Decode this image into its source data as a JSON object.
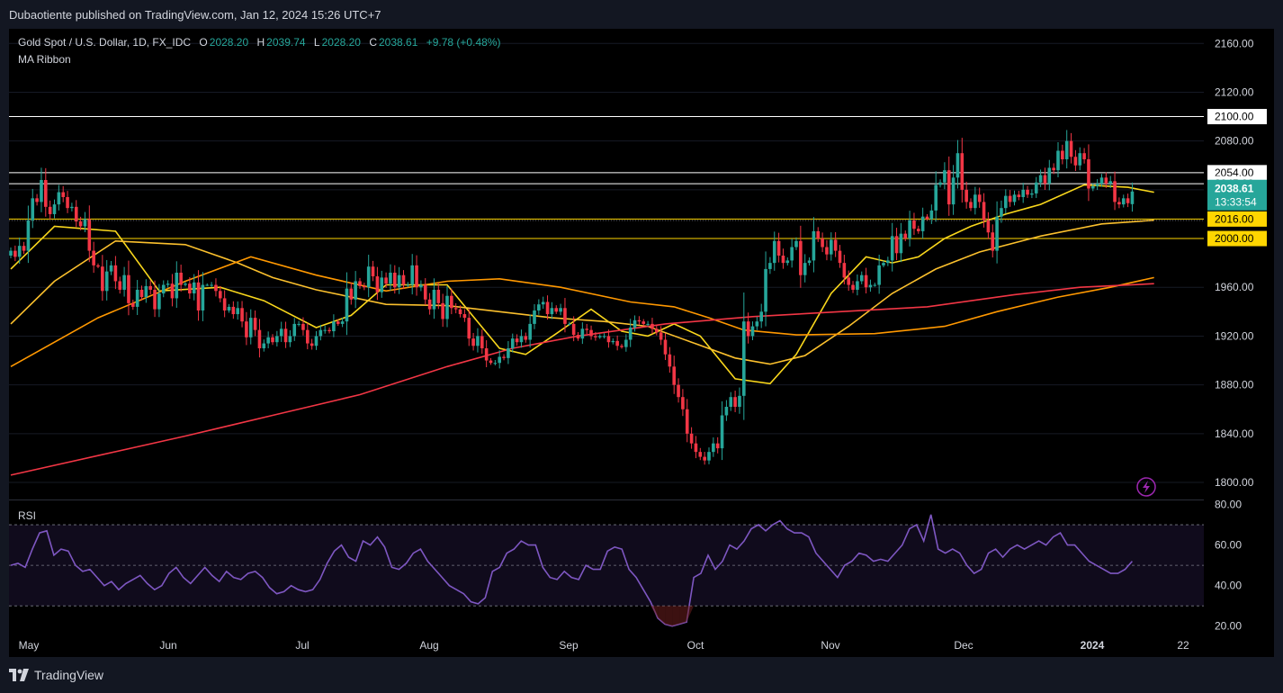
{
  "publisher": "Dubaotiente published on TradingView.com, Jan 12, 2024 15:26 UTC+7",
  "symbol": "Gold Spot / U.S. Dollar, 1D, FX_IDC",
  "ohlc": {
    "o_label": "O",
    "o": "2028.20",
    "h_label": "H",
    "h": "2039.74",
    "l_label": "L",
    "l": "2028.20",
    "c_label": "C",
    "c": "2038.61",
    "change": "+9.78 (+0.48%)"
  },
  "indicator": "MA Ribbon",
  "rsi_label": "RSI",
  "price_tag": {
    "price": "2038.61",
    "countdown": "13:33:54"
  },
  "footer_brand": "TradingView",
  "chart_data": [
    {
      "type": "candlestick",
      "x_ticks": [
        "May",
        "Jun",
        "Jul",
        "Aug",
        "Sep",
        "Oct",
        "Nov",
        "Dec",
        "2024",
        "22"
      ],
      "y_ticks": [
        "1800.00",
        "1840.00",
        "1880.00",
        "1920.00",
        "1960.00",
        "2000.00",
        "2040.00",
        "2080.00",
        "2120.00",
        "2160.00"
      ],
      "ylim": [
        1786,
        2172
      ],
      "levels": [
        {
          "value": 2100,
          "label": "2100.00",
          "color": "#ffffff"
        },
        {
          "value": 2054,
          "label": "2054.00",
          "color": "#ffffff"
        },
        {
          "value": 2045,
          "label": "2045.00",
          "color": "#ffffff"
        },
        {
          "value": 2016,
          "label": "2016.00",
          "color": "#ffd600"
        },
        {
          "value": 2000,
          "label": "2000.00",
          "color": "#ffd600"
        }
      ],
      "closes": [
        1990,
        1985,
        1994,
        1990,
        2015,
        2033,
        2030,
        2048,
        2026,
        2020,
        2028,
        2038,
        2034,
        2025,
        2026,
        2014,
        2010,
        2016,
        1990,
        1978,
        1977,
        1957,
        1973,
        1978,
        1965,
        1958,
        1970,
        1947,
        1944,
        1958,
        1952,
        1961,
        1958,
        1942,
        1955,
        1962,
        1963,
        1951,
        1972,
        1962,
        1963,
        1955,
        1964,
        1941,
        1962,
        1962,
        1962,
        1957,
        1951,
        1941,
        1944,
        1938,
        1943,
        1932,
        1919,
        1935,
        1925,
        1910,
        1914,
        1919,
        1915,
        1920,
        1926,
        1915,
        1920,
        1930,
        1930,
        1925,
        1914,
        1912,
        1920,
        1925,
        1925,
        1924,
        1932,
        1930,
        1932,
        1959,
        1950,
        1965,
        1961,
        1960,
        1977,
        1969,
        1956,
        1968,
        1963,
        1972,
        1960,
        1970,
        1962,
        1962,
        1978,
        1960,
        1962,
        1950,
        1942,
        1958,
        1947,
        1934,
        1953,
        1943,
        1942,
        1938,
        1935,
        1918,
        1912,
        1920,
        1910,
        1900,
        1898,
        1898,
        1903,
        1902,
        1910,
        1918,
        1915,
        1920,
        1917,
        1930,
        1941,
        1946,
        1948,
        1938,
        1943,
        1940,
        1943,
        1930,
        1930,
        1921,
        1918,
        1926,
        1925,
        1920,
        1919,
        1920,
        1920,
        1915,
        1916,
        1912,
        1911,
        1917,
        1927,
        1933,
        1932,
        1930,
        1930,
        1926,
        1923,
        1917,
        1905,
        1895,
        1880,
        1870,
        1860,
        1840,
        1832,
        1825,
        1821,
        1818,
        1825,
        1832,
        1828,
        1855,
        1862,
        1870,
        1862,
        1871,
        1932,
        1920,
        1928,
        1932,
        1940,
        1975,
        1980,
        1998,
        1986,
        1980,
        1982,
        1993,
        1998,
        1970,
        1980,
        1982,
        2006,
        2000,
        1993,
        1987,
        1999,
        1990,
        1980,
        1968,
        1962,
        1958,
        1965,
        1970,
        1960,
        1962,
        1962,
        1978,
        1980,
        1982,
        2002,
        1988,
        2004,
        2000,
        2015,
        2008,
        2006,
        2018,
        2016,
        2023,
        2044,
        2046,
        2056,
        2028,
        2050,
        2070,
        2040,
        2030,
        2025,
        2036,
        2030,
        2015,
        2005,
        1990,
        2018,
        2025,
        2035,
        2030,
        2036,
        2034,
        2040,
        2036,
        2037,
        2046,
        2052,
        2045,
        2058,
        2056,
        2072,
        2065,
        2080,
        2067,
        2060,
        2070,
        2065,
        2041,
        2043,
        2045,
        2050,
        2045,
        2047,
        2030,
        2028,
        2033,
        2029,
        2038.61
      ],
      "moving_averages": [
        {
          "color": "#f9d71c",
          "points": [
            [
              0,
              1975
            ],
            [
              10,
              2010
            ],
            [
              24,
              2006
            ],
            [
              34,
              1957
            ],
            [
              48,
              1960
            ],
            [
              58,
              1949
            ],
            [
              70,
              1927
            ],
            [
              78,
              1937
            ],
            [
              86,
              1962
            ],
            [
              100,
              1962
            ],
            [
              112,
              1910
            ],
            [
              118,
              1905
            ],
            [
              125,
              1922
            ],
            [
              133,
              1942
            ],
            [
              140,
              1924
            ],
            [
              146,
              1920
            ],
            [
              152,
              1930
            ],
            [
              158,
              1920
            ],
            [
              166,
              1885
            ],
            [
              174,
              1881
            ],
            [
              180,
              1905
            ],
            [
              188,
              1955
            ],
            [
              196,
              1985
            ],
            [
              202,
              1980
            ],
            [
              208,
              1985
            ],
            [
              214,
              2000
            ],
            [
              220,
              2010
            ],
            [
              228,
              2020
            ],
            [
              236,
              2028
            ],
            [
              246,
              2044
            ],
            [
              256,
              2042
            ],
            [
              262,
              2038
            ]
          ]
        },
        {
          "color": "#fbc02d",
          "points": [
            [
              0,
              1930
            ],
            [
              10,
              1965
            ],
            [
              24,
              1998
            ],
            [
              40,
              1995
            ],
            [
              52,
              1980
            ],
            [
              60,
              1968
            ],
            [
              70,
              1958
            ],
            [
              86,
              1946
            ],
            [
              100,
              1945
            ],
            [
              112,
              1940
            ],
            [
              124,
              1935
            ],
            [
              136,
              1932
            ],
            [
              146,
              1928
            ],
            [
              156,
              1915
            ],
            [
              166,
              1902
            ],
            [
              174,
              1897
            ],
            [
              182,
              1904
            ],
            [
              192,
              1928
            ],
            [
              202,
              1955
            ],
            [
              212,
              1975
            ],
            [
              222,
              1989
            ],
            [
              236,
              2002
            ],
            [
              250,
              2012
            ],
            [
              262,
              2015
            ]
          ]
        },
        {
          "color": "#ff9800",
          "points": [
            [
              0,
              1895
            ],
            [
              20,
              1935
            ],
            [
              40,
              1965
            ],
            [
              55,
              1985
            ],
            [
              70,
              1970
            ],
            [
              86,
              1957
            ],
            [
              100,
              1965
            ],
            [
              112,
              1967
            ],
            [
              126,
              1960
            ],
            [
              142,
              1948
            ],
            [
              152,
              1944
            ],
            [
              160,
              1935
            ],
            [
              168,
              1925
            ],
            [
              180,
              1921
            ],
            [
              198,
              1922
            ],
            [
              214,
              1928
            ],
            [
              226,
              1940
            ],
            [
              240,
              1952
            ],
            [
              252,
              1960
            ],
            [
              262,
              1968
            ]
          ]
        },
        {
          "color": "#f23645",
          "points": [
            [
              0,
              1806
            ],
            [
              20,
              1822
            ],
            [
              40,
              1838
            ],
            [
              60,
              1855
            ],
            [
              80,
              1872
            ],
            [
              100,
              1895
            ],
            [
              115,
              1910
            ],
            [
              130,
              1920
            ],
            [
              150,
              1930
            ],
            [
              170,
              1936
            ],
            [
              190,
              1940
            ],
            [
              210,
              1944
            ],
            [
              230,
              1954
            ],
            [
              245,
              1960
            ],
            [
              262,
              1963
            ]
          ]
        }
      ]
    },
    {
      "type": "line",
      "title": "RSI",
      "y_ticks": [
        "20.00",
        "40.00",
        "60.00",
        "80.00"
      ],
      "ylim": [
        15,
        82
      ],
      "bands": [
        30,
        50,
        70
      ],
      "series": [
        {
          "values": [
            50,
            51,
            49,
            58,
            66,
            67,
            55,
            58,
            57,
            50,
            47,
            48,
            44,
            40,
            42,
            38,
            41,
            43,
            45,
            41,
            38,
            40,
            46,
            49,
            44,
            41,
            45,
            49,
            45,
            42,
            47,
            44,
            43,
            46,
            47,
            44,
            39,
            36,
            37,
            40,
            38,
            37,
            38,
            43,
            51,
            57,
            60,
            54,
            52,
            62,
            60,
            64,
            59,
            49,
            48,
            51,
            56,
            58,
            52,
            48,
            44,
            40,
            38,
            36,
            32,
            31,
            34,
            47,
            49,
            56,
            58,
            62,
            60,
            60,
            49,
            44,
            43,
            47,
            44,
            43,
            50,
            48,
            48,
            57,
            59,
            58,
            48,
            44,
            38,
            32,
            24,
            21,
            20,
            21,
            22,
            44,
            46,
            55,
            48,
            52,
            60,
            58,
            62,
            68,
            70,
            67,
            70,
            72,
            68,
            66,
            66,
            64,
            56,
            52,
            48,
            44,
            50,
            52,
            56,
            55,
            52,
            53,
            52,
            56,
            60,
            68,
            70,
            62,
            75,
            58,
            56,
            58,
            56,
            50,
            46,
            48,
            56,
            58,
            54,
            58,
            60,
            58,
            60,
            62,
            60,
            64,
            66,
            60,
            60,
            56,
            52,
            50,
            48,
            46,
            46,
            48,
            52
          ]
        }
      ]
    }
  ]
}
